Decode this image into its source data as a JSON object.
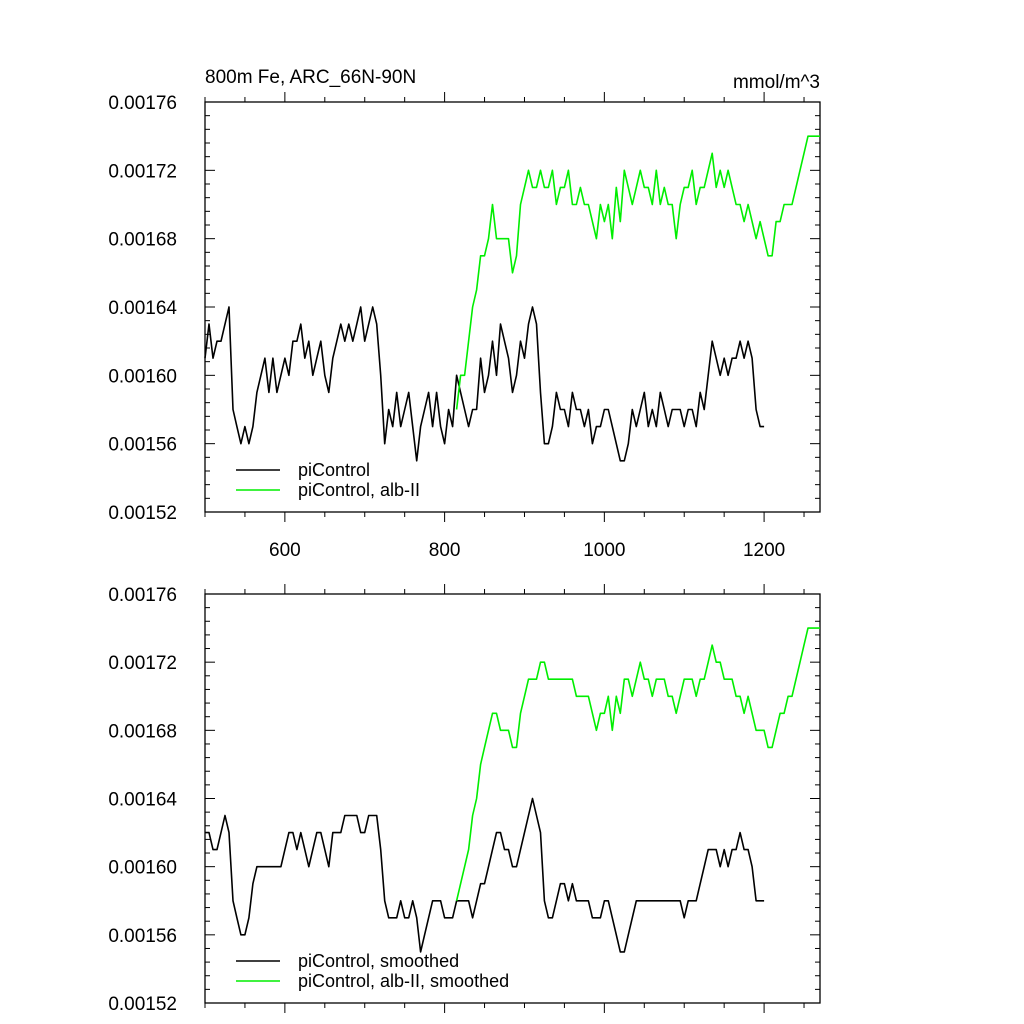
{
  "title_left": "800m Fe, ARC_66N-90N",
  "title_right": "mmol/m^3",
  "colors": {
    "control": "#000000",
    "albedo": "#00ee00",
    "axis": "#000000"
  },
  "chart_data": [
    {
      "type": "line",
      "xlim": [
        500,
        1270
      ],
      "ylim": [
        0.00152,
        0.00176
      ],
      "xticks": [
        600,
        800,
        1000,
        1200
      ],
      "xtick_labels": [
        "600",
        "800",
        "1000",
        "1200"
      ],
      "yticks": [
        0.00152,
        0.00156,
        0.0016,
        0.00164,
        0.00168,
        0.00172,
        0.00176
      ],
      "ytick_labels": [
        "0.00152",
        "0.00156",
        "0.00160",
        "0.00164",
        "0.00168",
        "0.00172",
        "0.00176"
      ],
      "legend_position": "bottom-left",
      "series": [
        {
          "name": "piControl",
          "x": [
            500,
            505,
            510,
            515,
            520,
            525,
            530,
            535,
            540,
            545,
            550,
            555,
            560,
            565,
            570,
            575,
            580,
            585,
            590,
            595,
            600,
            605,
            610,
            615,
            620,
            625,
            630,
            635,
            640,
            645,
            650,
            655,
            660,
            665,
            670,
            675,
            680,
            685,
            690,
            695,
            700,
            705,
            710,
            715,
            720,
            725,
            730,
            735,
            740,
            745,
            750,
            755,
            760,
            765,
            770,
            775,
            780,
            785,
            790,
            795,
            800,
            805,
            810,
            815,
            820,
            825,
            830,
            835,
            840,
            845,
            850,
            855,
            860,
            865,
            870,
            875,
            880,
            885,
            890,
            895,
            900,
            905,
            910,
            915,
            920,
            925,
            930,
            935,
            940,
            945,
            950,
            955,
            960,
            965,
            970,
            975,
            980,
            985,
            990,
            995,
            1000,
            1005,
            1010,
            1015,
            1020,
            1025,
            1030,
            1035,
            1040,
            1045,
            1050,
            1055,
            1060,
            1065,
            1070,
            1075,
            1080,
            1085,
            1090,
            1095,
            1100,
            1105,
            1110,
            1115,
            1120,
            1125,
            1130,
            1135,
            1140,
            1145,
            1150,
            1155,
            1160,
            1165,
            1170,
            1175,
            1180,
            1185,
            1190,
            1195,
            1200
          ],
          "y": [
            0.00161,
            0.00163,
            0.00161,
            0.00162,
            0.00162,
            0.00163,
            0.00164,
            0.00158,
            0.00157,
            0.00156,
            0.00157,
            0.00156,
            0.00157,
            0.00159,
            0.0016,
            0.00161,
            0.00159,
            0.00161,
            0.00159,
            0.0016,
            0.00161,
            0.0016,
            0.00162,
            0.00162,
            0.00163,
            0.00161,
            0.00162,
            0.0016,
            0.00161,
            0.00162,
            0.0016,
            0.00159,
            0.00161,
            0.00162,
            0.00163,
            0.00162,
            0.00163,
            0.00162,
            0.00163,
            0.00164,
            0.00162,
            0.00163,
            0.00164,
            0.00163,
            0.0016,
            0.00156,
            0.00158,
            0.00157,
            0.00159,
            0.00157,
            0.00158,
            0.00159,
            0.00157,
            0.00155,
            0.00157,
            0.00158,
            0.00159,
            0.00157,
            0.00159,
            0.00157,
            0.00156,
            0.00158,
            0.00157,
            0.0016,
            0.00159,
            0.00158,
            0.00157,
            0.00158,
            0.00158,
            0.00161,
            0.00159,
            0.0016,
            0.00162,
            0.0016,
            0.00163,
            0.00162,
            0.00161,
            0.00159,
            0.0016,
            0.00162,
            0.00161,
            0.00163,
            0.00164,
            0.00163,
            0.00159,
            0.00156,
            0.00156,
            0.00157,
            0.00159,
            0.00158,
            0.00158,
            0.00157,
            0.00159,
            0.00158,
            0.00158,
            0.00157,
            0.00158,
            0.00156,
            0.00157,
            0.00157,
            0.00158,
            0.00158,
            0.00157,
            0.00156,
            0.00155,
            0.00155,
            0.00156,
            0.00158,
            0.00157,
            0.00158,
            0.00159,
            0.00157,
            0.00158,
            0.00157,
            0.00159,
            0.00158,
            0.00157,
            0.00158,
            0.00158,
            0.00158,
            0.00157,
            0.00158,
            0.00158,
            0.00157,
            0.00159,
            0.00158,
            0.0016,
            0.00162,
            0.00161,
            0.0016,
            0.00161,
            0.0016,
            0.00161,
            0.00161,
            0.00162,
            0.00161,
            0.00162,
            0.00161,
            0.00158,
            0.00157,
            0.00157
          ]
        },
        {
          "name": "piControl, alb-II",
          "x": [
            815,
            820,
            825,
            830,
            835,
            840,
            845,
            850,
            855,
            860,
            865,
            870,
            875,
            880,
            885,
            890,
            895,
            900,
            905,
            910,
            915,
            920,
            925,
            930,
            935,
            940,
            945,
            950,
            955,
            960,
            965,
            970,
            975,
            980,
            985,
            990,
            995,
            1000,
            1005,
            1010,
            1015,
            1020,
            1025,
            1030,
            1035,
            1040,
            1045,
            1050,
            1055,
            1060,
            1065,
            1070,
            1075,
            1080,
            1085,
            1090,
            1095,
            1100,
            1105,
            1110,
            1115,
            1120,
            1125,
            1130,
            1135,
            1140,
            1145,
            1150,
            1155,
            1160,
            1165,
            1170,
            1175,
            1180,
            1185,
            1190,
            1195,
            1200,
            1205,
            1210,
            1215,
            1220,
            1225,
            1230,
            1235,
            1240,
            1245,
            1250,
            1255,
            1260,
            1265,
            1270
          ],
          "y": [
            0.00158,
            0.0016,
            0.0016,
            0.00162,
            0.00164,
            0.00165,
            0.00167,
            0.00167,
            0.00168,
            0.0017,
            0.00168,
            0.00168,
            0.00168,
            0.00168,
            0.00166,
            0.00167,
            0.0017,
            0.00171,
            0.00172,
            0.00171,
            0.00171,
            0.00172,
            0.00171,
            0.00171,
            0.00172,
            0.0017,
            0.00171,
            0.00171,
            0.00172,
            0.0017,
            0.0017,
            0.00171,
            0.0017,
            0.0017,
            0.00169,
            0.00168,
            0.0017,
            0.00169,
            0.0017,
            0.00168,
            0.00171,
            0.00169,
            0.00172,
            0.00171,
            0.0017,
            0.00171,
            0.00172,
            0.00171,
            0.00171,
            0.0017,
            0.00172,
            0.0017,
            0.00171,
            0.0017,
            0.0017,
            0.00168,
            0.0017,
            0.00171,
            0.00171,
            0.00172,
            0.0017,
            0.00171,
            0.00171,
            0.00172,
            0.00173,
            0.00171,
            0.00172,
            0.00171,
            0.00172,
            0.00171,
            0.0017,
            0.0017,
            0.00169,
            0.0017,
            0.00169,
            0.00168,
            0.00169,
            0.00168,
            0.00167,
            0.00167,
            0.00169,
            0.00169,
            0.0017,
            0.0017,
            0.0017,
            0.00171,
            0.00172,
            0.00173,
            0.00174,
            0.00174,
            0.00174,
            0.00174
          ]
        }
      ]
    },
    {
      "type": "line",
      "xlim": [
        500,
        1270
      ],
      "ylim": [
        0.00152,
        0.00176
      ],
      "xticks": [
        600,
        800,
        1000,
        1200
      ],
      "yticks": [
        0.00152,
        0.00156,
        0.0016,
        0.00164,
        0.00168,
        0.00172,
        0.00176
      ],
      "ytick_labels": [
        "0.00152",
        "0.00156",
        "0.00160",
        "0.00164",
        "0.00168",
        "0.00172",
        "0.00176"
      ],
      "legend_position": "bottom-left",
      "series": [
        {
          "name": "piControl, smoothed",
          "x": [
            500,
            505,
            510,
            515,
            520,
            525,
            530,
            535,
            540,
            545,
            550,
            555,
            560,
            565,
            570,
            575,
            580,
            585,
            590,
            595,
            600,
            605,
            610,
            615,
            620,
            625,
            630,
            635,
            640,
            645,
            650,
            655,
            660,
            665,
            670,
            675,
            680,
            685,
            690,
            695,
            700,
            705,
            710,
            715,
            720,
            725,
            730,
            735,
            740,
            745,
            750,
            755,
            760,
            765,
            770,
            775,
            780,
            785,
            790,
            795,
            800,
            805,
            810,
            815,
            820,
            825,
            830,
            835,
            840,
            845,
            850,
            855,
            860,
            865,
            870,
            875,
            880,
            885,
            890,
            895,
            900,
            905,
            910,
            915,
            920,
            925,
            930,
            935,
            940,
            945,
            950,
            955,
            960,
            965,
            970,
            975,
            980,
            985,
            990,
            995,
            1000,
            1005,
            1010,
            1015,
            1020,
            1025,
            1030,
            1035,
            1040,
            1045,
            1050,
            1055,
            1060,
            1065,
            1070,
            1075,
            1080,
            1085,
            1090,
            1095,
            1100,
            1105,
            1110,
            1115,
            1120,
            1125,
            1130,
            1135,
            1140,
            1145,
            1150,
            1155,
            1160,
            1165,
            1170,
            1175,
            1180,
            1185,
            1190,
            1195,
            1200
          ],
          "y": [
            0.00162,
            0.00162,
            0.00161,
            0.00161,
            0.00162,
            0.00163,
            0.00162,
            0.00158,
            0.00157,
            0.00156,
            0.00156,
            0.00157,
            0.00159,
            0.0016,
            0.0016,
            0.0016,
            0.0016,
            0.0016,
            0.0016,
            0.0016,
            0.00161,
            0.00162,
            0.00162,
            0.00161,
            0.00162,
            0.00161,
            0.0016,
            0.00161,
            0.00162,
            0.00162,
            0.00161,
            0.0016,
            0.00162,
            0.00162,
            0.00162,
            0.00163,
            0.00163,
            0.00163,
            0.00163,
            0.00162,
            0.00162,
            0.00163,
            0.00163,
            0.00163,
            0.00161,
            0.00158,
            0.00157,
            0.00157,
            0.00157,
            0.00158,
            0.00157,
            0.00157,
            0.00158,
            0.00157,
            0.00155,
            0.00156,
            0.00157,
            0.00158,
            0.00158,
            0.00158,
            0.00157,
            0.00157,
            0.00157,
            0.00158,
            0.00158,
            0.00158,
            0.00158,
            0.00157,
            0.00158,
            0.00159,
            0.00159,
            0.0016,
            0.00161,
            0.00162,
            0.00162,
            0.00161,
            0.00161,
            0.0016,
            0.0016,
            0.00161,
            0.00162,
            0.00163,
            0.00164,
            0.00163,
            0.00162,
            0.00158,
            0.00157,
            0.00157,
            0.00158,
            0.00159,
            0.00159,
            0.00158,
            0.00159,
            0.00158,
            0.00158,
            0.00158,
            0.00158,
            0.00157,
            0.00157,
            0.00157,
            0.00158,
            0.00158,
            0.00157,
            0.00156,
            0.00155,
            0.00155,
            0.00156,
            0.00157,
            0.00158,
            0.00158,
            0.00158,
            0.00158,
            0.00158,
            0.00158,
            0.00158,
            0.00158,
            0.00158,
            0.00158,
            0.00158,
            0.00158,
            0.00157,
            0.00158,
            0.00158,
            0.00158,
            0.00159,
            0.0016,
            0.00161,
            0.00161,
            0.00161,
            0.0016,
            0.00161,
            0.0016,
            0.00161,
            0.00161,
            0.00162,
            0.00161,
            0.00161,
            0.0016,
            0.00158,
            0.00158,
            0.00158
          ]
        },
        {
          "name": "piControl, alb-II, smoothed",
          "x": [
            815,
            820,
            825,
            830,
            835,
            840,
            845,
            850,
            855,
            860,
            865,
            870,
            875,
            880,
            885,
            890,
            895,
            900,
            905,
            910,
            915,
            920,
            925,
            930,
            935,
            940,
            945,
            950,
            955,
            960,
            965,
            970,
            975,
            980,
            985,
            990,
            995,
            1000,
            1005,
            1010,
            1015,
            1020,
            1025,
            1030,
            1035,
            1040,
            1045,
            1050,
            1055,
            1060,
            1065,
            1070,
            1075,
            1080,
            1085,
            1090,
            1095,
            1100,
            1105,
            1110,
            1115,
            1120,
            1125,
            1130,
            1135,
            1140,
            1145,
            1150,
            1155,
            1160,
            1165,
            1170,
            1175,
            1180,
            1185,
            1190,
            1195,
            1200,
            1205,
            1210,
            1215,
            1220,
            1225,
            1230,
            1235,
            1240,
            1245,
            1250,
            1255,
            1260,
            1265,
            1270
          ],
          "y": [
            0.00158,
            0.00159,
            0.0016,
            0.00161,
            0.00163,
            0.00164,
            0.00166,
            0.00167,
            0.00168,
            0.00169,
            0.00169,
            0.00168,
            0.00168,
            0.00168,
            0.00167,
            0.00167,
            0.00169,
            0.0017,
            0.00171,
            0.00171,
            0.00171,
            0.00172,
            0.00172,
            0.00171,
            0.00171,
            0.00171,
            0.00171,
            0.00171,
            0.00171,
            0.00171,
            0.0017,
            0.0017,
            0.0017,
            0.0017,
            0.00169,
            0.00168,
            0.00169,
            0.00169,
            0.0017,
            0.00168,
            0.0017,
            0.00169,
            0.00171,
            0.00171,
            0.0017,
            0.00171,
            0.00172,
            0.00171,
            0.00171,
            0.0017,
            0.00171,
            0.00171,
            0.00171,
            0.0017,
            0.0017,
            0.00169,
            0.0017,
            0.00171,
            0.00171,
            0.00171,
            0.0017,
            0.00171,
            0.00171,
            0.00172,
            0.00173,
            0.00172,
            0.00172,
            0.00171,
            0.00171,
            0.00171,
            0.0017,
            0.0017,
            0.00169,
            0.0017,
            0.00169,
            0.00168,
            0.00168,
            0.00168,
            0.00167,
            0.00167,
            0.00168,
            0.00169,
            0.00169,
            0.0017,
            0.0017,
            0.00171,
            0.00172,
            0.00173,
            0.00174,
            0.00174,
            0.00174,
            0.00174
          ]
        }
      ]
    }
  ]
}
